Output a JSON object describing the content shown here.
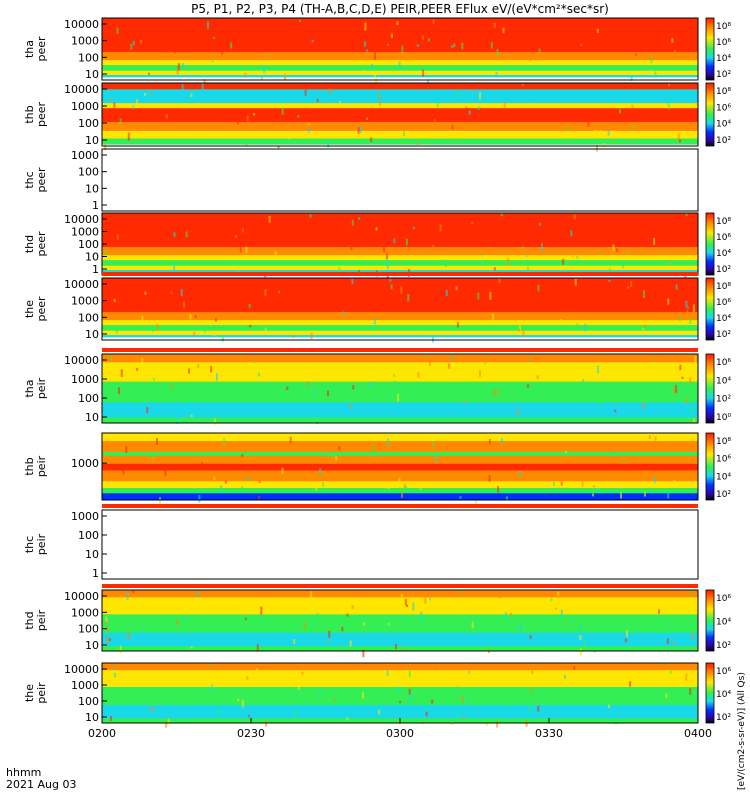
{
  "title": "P5, P1, P2, P3, P4 (TH-A,B,C,D,E) PEIR,PEER EFlux eV/(eV*cm²*sec*sr)",
  "footer": {
    "time_label": "hhmm",
    "date_label": "2021 Aug 03"
  },
  "colorbar_title": "[eV/(cm2-s-sr-eV)] (All Qs)",
  "chart_data": {
    "type": "heatmap",
    "x_ticks": [
      "0200",
      "0230",
      "0300",
      "0330",
      "0400"
    ],
    "panels": [
      {
        "id": "tha-peer",
        "label": [
          "tha",
          "peer"
        ],
        "yticks": [
          "10000",
          "1000",
          "100",
          "10"
        ],
        "colorbar": true,
        "cticks": [
          "10⁸",
          "10⁶",
          "10⁴",
          "10²"
        ],
        "empty": false,
        "flags": false,
        "palette": "electron-hot"
      },
      {
        "id": "thb-peer",
        "label": [
          "thb",
          "peer"
        ],
        "yticks": [
          "10000",
          "1000",
          "100",
          "10"
        ],
        "colorbar": true,
        "cticks": [
          "10⁸",
          "10⁶",
          "10⁴",
          "10²"
        ],
        "empty": false,
        "flags": false,
        "palette": "electron-band"
      },
      {
        "id": "thc-peer",
        "label": [
          "thc",
          "peer"
        ],
        "yticks": [
          "1000",
          "100",
          "10",
          "1"
        ],
        "colorbar": false,
        "empty": true,
        "flags": false
      },
      {
        "id": "thd-peer",
        "label": [
          "thd",
          "peer"
        ],
        "yticks": [
          "10000",
          "1000",
          "100",
          "10",
          "1"
        ],
        "colorbar": true,
        "cticks": [
          "10⁸",
          "10⁶",
          "10⁴",
          "10²"
        ],
        "empty": false,
        "flags": false,
        "palette": "electron-hot"
      },
      {
        "id": "the-peer",
        "label": [
          "the",
          "peer"
        ],
        "yticks": [
          "10000",
          "1000",
          "100",
          "10"
        ],
        "colorbar": true,
        "cticks": [
          "10⁸",
          "10⁶",
          "10⁴",
          "10²"
        ],
        "empty": false,
        "flags": true,
        "palette": "electron-hot"
      },
      {
        "id": "tha-peir",
        "label": [
          "tha",
          "peir"
        ],
        "yticks": [
          "10000",
          "1000",
          "100",
          "10"
        ],
        "colorbar": true,
        "cticks": [
          "10⁶",
          "10⁴",
          "10²",
          "10⁰"
        ],
        "empty": false,
        "flags": true,
        "palette": "ion"
      },
      {
        "id": "thb-peir",
        "label": [
          "thb",
          "peir"
        ],
        "yticks": [
          "1000"
        ],
        "colorbar": true,
        "cticks": [
          "10⁸",
          "10⁶",
          "10⁴",
          "10²"
        ],
        "empty": false,
        "flags": false,
        "palette": "ion-band"
      },
      {
        "id": "thc-peir",
        "label": [
          "thc",
          "peir"
        ],
        "yticks": [
          "1000",
          "100",
          "10",
          "1"
        ],
        "colorbar": false,
        "empty": true,
        "flags": true
      },
      {
        "id": "thd-peir",
        "label": [
          "thd",
          "peir"
        ],
        "yticks": [
          "10000",
          "1000",
          "100",
          "10"
        ],
        "colorbar": true,
        "cticks": [
          "10⁶",
          "10⁴",
          "10²"
        ],
        "empty": false,
        "flags": true,
        "palette": "ion"
      },
      {
        "id": "the-peir",
        "label": [
          "the",
          "peir"
        ],
        "yticks": [
          "10000",
          "1000",
          "100",
          "10"
        ],
        "colorbar": true,
        "cticks": [
          "10⁶",
          "10⁴",
          "10²"
        ],
        "empty": false,
        "flags": false,
        "palette": "ion"
      }
    ]
  },
  "colors": {
    "red": "#ff2a00",
    "orange": "#ff8a00",
    "yellow": "#ffe600",
    "green": "#33ee55",
    "cyan": "#19d9e8",
    "blue": "#0030ff",
    "flag_yellow": "#ffee00"
  }
}
